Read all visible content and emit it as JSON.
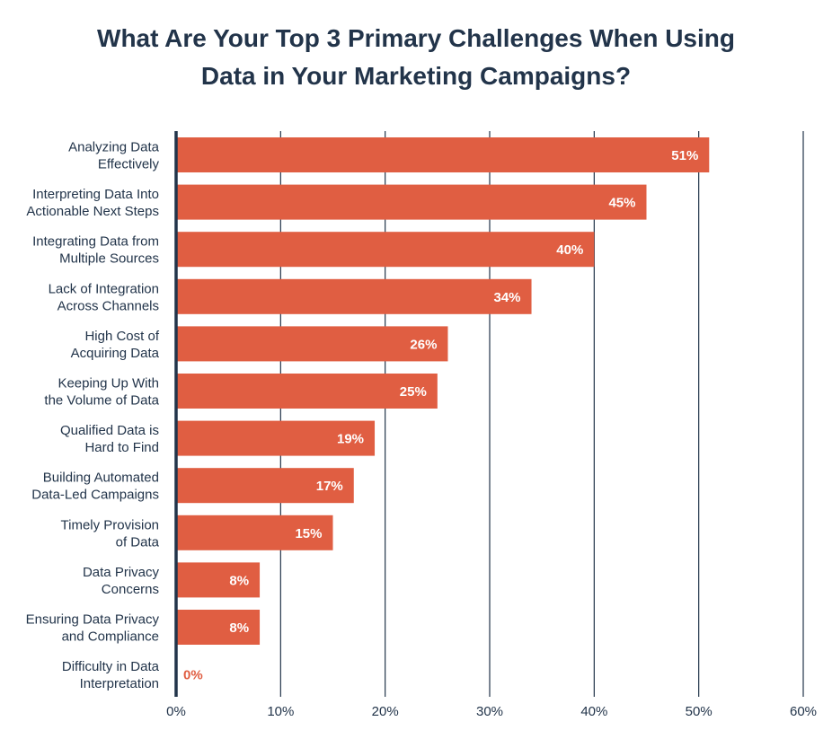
{
  "chart_data": {
    "type": "bar",
    "orientation": "horizontal",
    "title": "What Are Your Top 3 Primary Challenges When Using Data in Your Marketing Campaigns?",
    "title_lines": [
      "What Are Your Top 3 Primary Challenges When Using",
      "Data in Your Marketing Campaigns?"
    ],
    "categories": [
      [
        "Analyzing Data",
        "Effectively"
      ],
      [
        "Interpreting Data Into",
        "Actionable Next Steps"
      ],
      [
        "Integrating Data from",
        "Multiple Sources"
      ],
      [
        "Lack of Integration",
        "Across Channels"
      ],
      [
        "High Cost of",
        "Acquiring Data"
      ],
      [
        "Keeping Up With",
        "the Volume of Data"
      ],
      [
        "Qualified Data is",
        "Hard to Find"
      ],
      [
        "Building Automated",
        "Data-Led Campaigns"
      ],
      [
        "Timely Provision",
        "of Data"
      ],
      [
        "Data Privacy",
        "Concerns"
      ],
      [
        "Ensuring Data Privacy",
        "and Compliance"
      ],
      [
        "Difficulty in Data",
        "Interpretation"
      ]
    ],
    "values": [
      51,
      45,
      40,
      34,
      26,
      25,
      19,
      17,
      15,
      8,
      8,
      0
    ],
    "value_labels": [
      "51%",
      "45%",
      "40%",
      "34%",
      "26%",
      "25%",
      "19%",
      "17%",
      "15%",
      "8%",
      "8%",
      "0%"
    ],
    "xlim": [
      0,
      60
    ],
    "ticks": [
      0,
      10,
      20,
      30,
      40,
      50,
      60
    ],
    "tick_labels": [
      "0%",
      "10%",
      "20%",
      "30%",
      "40%",
      "50%",
      "60%"
    ],
    "grid": "vertical",
    "legend": "none",
    "colors": {
      "bar": "#e05e42",
      "text": "#22344a",
      "grid": "#22344a",
      "value_inside": "#ffffff",
      "value_outside": "#e05e42"
    }
  }
}
